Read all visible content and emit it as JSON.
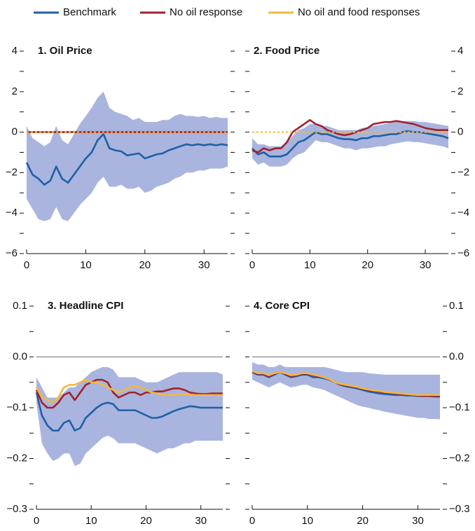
{
  "chart_data": [
    {
      "type": "line",
      "title": "1. Oil Price",
      "yaxis_side": "left",
      "x": [
        0,
        1,
        2,
        3,
        4,
        5,
        6,
        7,
        8,
        9,
        10,
        11,
        12,
        13,
        14,
        15,
        16,
        17,
        18,
        19,
        20,
        21,
        22,
        23,
        24,
        25,
        26,
        27,
        28,
        29,
        30,
        31,
        32,
        33,
        34
      ],
      "xlim": [
        0,
        34
      ],
      "xticks": [
        0,
        10,
        20,
        30
      ],
      "ylim": [
        -6,
        4
      ],
      "yticks": [
        4,
        2,
        0,
        {
          "value": -2,
          "label": "−2"
        },
        {
          "value": -4,
          "label": "−4"
        },
        {
          "value": -6,
          "label": "−6"
        }
      ],
      "yminor": [
        3,
        1,
        -1,
        -3,
        -5
      ],
      "zero_line": false,
      "band": {
        "color": "#a9b5de",
        "upper": [
          0.3,
          -0.3,
          -0.5,
          -0.7,
          -0.5,
          0.3,
          -0.4,
          -0.6,
          -0.1,
          0.4,
          0.8,
          1.2,
          1.7,
          2.0,
          1.2,
          1.0,
          0.9,
          0.8,
          0.6,
          0.7,
          0.5,
          0.5,
          0.5,
          0.6,
          0.6,
          0.8,
          0.9,
          0.8,
          0.8,
          0.75,
          0.8,
          0.7,
          0.75,
          0.7,
          0.7
        ],
        "lower": [
          -3.3,
          -3.8,
          -4.3,
          -4.4,
          -4.3,
          -3.7,
          -4.3,
          -4.4,
          -4.0,
          -3.6,
          -3.3,
          -3.0,
          -2.5,
          -2.2,
          -2.7,
          -2.7,
          -2.6,
          -2.8,
          -2.8,
          -2.7,
          -3.0,
          -2.9,
          -2.7,
          -2.6,
          -2.5,
          -2.3,
          -2.2,
          -2.0,
          -2.0,
          -1.9,
          -1.9,
          -1.8,
          -1.8,
          -1.8,
          -1.7
        ]
      },
      "series": [
        {
          "name": "Benchmark",
          "color": "#1f5fa6",
          "dashed": false,
          "values": [
            -1.5,
            -2.1,
            -2.3,
            -2.6,
            -2.4,
            -1.7,
            -2.3,
            -2.5,
            -2.1,
            -1.7,
            -1.3,
            -1.0,
            -0.4,
            -0.1,
            -0.8,
            -0.9,
            -0.95,
            -1.15,
            -1.1,
            -1.05,
            -1.3,
            -1.2,
            -1.1,
            -1.05,
            -0.9,
            -0.8,
            -0.7,
            -0.6,
            -0.65,
            -0.6,
            -0.65,
            -0.6,
            -0.65,
            -0.6,
            -0.65
          ]
        },
        {
          "name": "No oil response",
          "color": "#a3202e",
          "dashed": false,
          "values": [
            0,
            0,
            0,
            0,
            0,
            0,
            0,
            0,
            0,
            0,
            0,
            0,
            0,
            0,
            0,
            0,
            0,
            0,
            0,
            0,
            0,
            0,
            0,
            0,
            0,
            0,
            0,
            0,
            0,
            0,
            0,
            0,
            0,
            0,
            0
          ]
        },
        {
          "name": "No oil and food responses",
          "color": "#f4b73f",
          "dashed": true,
          "values": [
            0,
            0,
            0,
            0,
            0,
            0,
            0,
            0,
            0,
            0,
            0,
            0,
            0,
            0,
            0,
            0,
            0,
            0,
            0,
            0,
            0,
            0,
            0,
            0,
            0,
            0,
            0,
            0,
            0,
            0,
            0,
            0,
            0,
            0,
            0
          ]
        }
      ]
    },
    {
      "type": "line",
      "title": "2. Food Price",
      "yaxis_side": "right",
      "x": [
        0,
        1,
        2,
        3,
        4,
        5,
        6,
        7,
        8,
        9,
        10,
        11,
        12,
        13,
        14,
        15,
        16,
        17,
        18,
        19,
        20,
        21,
        22,
        23,
        24,
        25,
        26,
        27,
        28,
        29,
        30,
        31,
        32,
        33,
        34
      ],
      "xlim": [
        0,
        34
      ],
      "xticks": [
        0,
        10,
        20,
        30
      ],
      "ylim": [
        -6,
        4
      ],
      "yticks": [
        4,
        2,
        0,
        {
          "value": -2,
          "label": "−2"
        },
        {
          "value": -4,
          "label": "−4"
        },
        {
          "value": -6,
          "label": "−6"
        }
      ],
      "yminor": [
        3,
        1,
        -1,
        -3,
        -5
      ],
      "zero_line": false,
      "band": {
        "color": "#a9b5de",
        "upper": [
          -0.3,
          -0.6,
          -0.6,
          -0.7,
          -0.7,
          -0.7,
          -0.5,
          -0.2,
          0.1,
          0.2,
          0.4,
          0.4,
          0.3,
          0.3,
          0.2,
          0.1,
          0.1,
          0.1,
          0.1,
          0.2,
          0.25,
          0.3,
          0.35,
          0.4,
          0.45,
          0.5,
          0.55,
          0.55,
          0.55,
          0.5,
          0.5,
          0.45,
          0.4,
          0.35,
          0.3
        ],
        "lower": [
          -1.3,
          -1.6,
          -1.5,
          -1.7,
          -1.7,
          -1.7,
          -1.6,
          -1.3,
          -1.1,
          -1.0,
          -0.7,
          -0.4,
          -0.5,
          -0.5,
          -0.6,
          -0.7,
          -0.8,
          -0.8,
          -0.9,
          -0.8,
          -0.8,
          -0.75,
          -0.7,
          -0.7,
          -0.6,
          -0.55,
          -0.5,
          -0.45,
          -0.5,
          -0.5,
          -0.55,
          -0.6,
          -0.65,
          -0.7,
          -0.8
        ]
      },
      "series": [
        {
          "name": "Benchmark",
          "color": "#1f5fa6",
          "dashed": false,
          "values": [
            -0.8,
            -1.1,
            -1.0,
            -1.2,
            -1.2,
            -1.2,
            -1.1,
            -0.8,
            -0.5,
            -0.4,
            -0.2,
            0.0,
            -0.1,
            -0.1,
            -0.2,
            -0.3,
            -0.35,
            -0.35,
            -0.4,
            -0.3,
            -0.3,
            -0.2,
            -0.2,
            -0.15,
            -0.1,
            -0.1,
            0.0,
            0.05,
            0.0,
            0.0,
            -0.05,
            -0.1,
            -0.15,
            -0.2,
            -0.3
          ]
        },
        {
          "name": "No oil response",
          "color": "#a3202e",
          "dashed": false,
          "values": [
            -0.9,
            -1.0,
            -0.8,
            -0.9,
            -0.8,
            -0.8,
            -0.5,
            0.0,
            0.2,
            0.4,
            0.6,
            0.4,
            0.3,
            0.1,
            0.0,
            -0.1,
            -0.15,
            -0.1,
            0.0,
            0.1,
            0.2,
            0.4,
            0.45,
            0.5,
            0.5,
            0.55,
            0.5,
            0.45,
            0.4,
            0.3,
            0.2,
            0.15,
            0.1,
            0.1,
            0.1
          ]
        },
        {
          "name": "No oil and food responses",
          "color": "#f4b73f",
          "dashed": true,
          "values": [
            0,
            0,
            0,
            0,
            0,
            0,
            0,
            0,
            0,
            0,
            0,
            0,
            0,
            0,
            0,
            0,
            0,
            0,
            0,
            0,
            0,
            0,
            0,
            0,
            0,
            0,
            0,
            0,
            0,
            0,
            0,
            0,
            0,
            0,
            0
          ]
        }
      ]
    },
    {
      "type": "line",
      "title": "3. Headline CPI",
      "yaxis_side": "left",
      "x": [
        0,
        1,
        2,
        3,
        4,
        5,
        6,
        7,
        8,
        9,
        10,
        11,
        12,
        13,
        14,
        15,
        16,
        17,
        18,
        19,
        20,
        21,
        22,
        23,
        24,
        25,
        26,
        27,
        28,
        29,
        30,
        31,
        32,
        33,
        34
      ],
      "xlim": [
        0,
        34
      ],
      "xticks": [
        0,
        10,
        20,
        30
      ],
      "ylim": [
        -0.3,
        0.1
      ],
      "yticks": [
        0.1,
        {
          "value": 0,
          "label": "0.0"
        },
        {
          "value": -0.1,
          "label": "−0.1"
        },
        {
          "value": -0.2,
          "label": "−0.2"
        },
        {
          "value": -0.3,
          "label": "−0.3"
        }
      ],
      "yminor": [
        0.05,
        -0.05,
        -0.15,
        -0.25
      ],
      "zero_line": true,
      "band": {
        "color": "#a9b5de",
        "upper": [
          -0.04,
          -0.06,
          -0.08,
          -0.08,
          -0.08,
          -0.07,
          -0.06,
          -0.06,
          -0.05,
          -0.04,
          -0.03,
          -0.025,
          -0.02,
          -0.02,
          -0.025,
          -0.04,
          -0.04,
          -0.04,
          -0.04,
          -0.045,
          -0.05,
          -0.05,
          -0.05,
          -0.045,
          -0.04,
          -0.035,
          -0.03,
          -0.03,
          -0.03,
          -0.03,
          -0.03,
          -0.03,
          -0.03,
          -0.03,
          -0.035
        ],
        "lower": [
          -0.09,
          -0.17,
          -0.19,
          -0.205,
          -0.2,
          -0.19,
          -0.19,
          -0.215,
          -0.21,
          -0.19,
          -0.18,
          -0.17,
          -0.16,
          -0.155,
          -0.16,
          -0.17,
          -0.17,
          -0.17,
          -0.17,
          -0.175,
          -0.18,
          -0.185,
          -0.19,
          -0.185,
          -0.18,
          -0.18,
          -0.175,
          -0.17,
          -0.17,
          -0.165,
          -0.165,
          -0.165,
          -0.165,
          -0.165,
          -0.165
        ]
      },
      "series": [
        {
          "name": "Benchmark",
          "color": "#1f5fa6",
          "dashed": false,
          "values": [
            -0.07,
            -0.115,
            -0.135,
            -0.145,
            -0.145,
            -0.13,
            -0.125,
            -0.145,
            -0.14,
            -0.12,
            -0.11,
            -0.1,
            -0.093,
            -0.09,
            -0.093,
            -0.105,
            -0.105,
            -0.105,
            -0.105,
            -0.11,
            -0.115,
            -0.12,
            -0.12,
            -0.117,
            -0.112,
            -0.107,
            -0.103,
            -0.1,
            -0.097,
            -0.098,
            -0.1,
            -0.1,
            -0.1,
            -0.1,
            -0.1
          ]
        },
        {
          "name": "No oil response",
          "color": "#a3202e",
          "dashed": false,
          "values": [
            -0.065,
            -0.09,
            -0.1,
            -0.1,
            -0.09,
            -0.075,
            -0.07,
            -0.085,
            -0.07,
            -0.055,
            -0.05,
            -0.045,
            -0.045,
            -0.05,
            -0.07,
            -0.08,
            -0.075,
            -0.07,
            -0.07,
            -0.075,
            -0.07,
            -0.07,
            -0.068,
            -0.068,
            -0.065,
            -0.062,
            -0.062,
            -0.065,
            -0.07,
            -0.072,
            -0.073,
            -0.073,
            -0.072,
            -0.072,
            -0.072
          ]
        },
        {
          "name": "No oil and food responses",
          "color": "#f4b73f",
          "dashed": false,
          "values": [
            -0.06,
            -0.08,
            -0.085,
            -0.09,
            -0.08,
            -0.06,
            -0.055,
            -0.055,
            -0.05,
            -0.045,
            -0.05,
            -0.05,
            -0.055,
            -0.06,
            -0.065,
            -0.07,
            -0.065,
            -0.06,
            -0.058,
            -0.06,
            -0.065,
            -0.07,
            -0.072,
            -0.075,
            -0.075,
            -0.075,
            -0.073,
            -0.073,
            -0.074,
            -0.075,
            -0.075,
            -0.075,
            -0.075,
            -0.075,
            -0.075
          ]
        }
      ]
    },
    {
      "type": "line",
      "title": "4. Core CPI",
      "yaxis_side": "right",
      "x": [
        0,
        1,
        2,
        3,
        4,
        5,
        6,
        7,
        8,
        9,
        10,
        11,
        12,
        13,
        14,
        15,
        16,
        17,
        18,
        19,
        20,
        21,
        22,
        23,
        24,
        25,
        26,
        27,
        28,
        29,
        30,
        31,
        32,
        33,
        34
      ],
      "xlim": [
        0,
        34
      ],
      "xticks": [
        0,
        10,
        20,
        30
      ],
      "ylim": [
        -0.3,
        0.1
      ],
      "yticks": [
        0.1,
        {
          "value": 0,
          "label": "0.0"
        },
        {
          "value": -0.1,
          "label": "−0.1"
        },
        {
          "value": -0.2,
          "label": "−0.2"
        },
        {
          "value": -0.3,
          "label": "−0.3"
        }
      ],
      "yminor": [
        0.05,
        -0.05,
        -0.15,
        -0.25
      ],
      "zero_line": true,
      "band": {
        "color": "#a9b5de",
        "upper": [
          -0.01,
          -0.015,
          -0.015,
          -0.02,
          -0.02,
          -0.015,
          -0.02,
          -0.02,
          -0.02,
          -0.02,
          -0.02,
          -0.02,
          -0.02,
          -0.02,
          -0.022,
          -0.025,
          -0.028,
          -0.03,
          -0.03,
          -0.03,
          -0.03,
          -0.032,
          -0.033,
          -0.034,
          -0.035,
          -0.035,
          -0.035,
          -0.035,
          -0.035,
          -0.035,
          -0.035,
          -0.035,
          -0.035,
          -0.035,
          -0.035
        ],
        "lower": [
          -0.045,
          -0.05,
          -0.055,
          -0.06,
          -0.055,
          -0.05,
          -0.055,
          -0.06,
          -0.058,
          -0.055,
          -0.055,
          -0.06,
          -0.062,
          -0.065,
          -0.07,
          -0.075,
          -0.08,
          -0.085,
          -0.09,
          -0.095,
          -0.098,
          -0.1,
          -0.103,
          -0.105,
          -0.108,
          -0.11,
          -0.112,
          -0.114,
          -0.116,
          -0.118,
          -0.12,
          -0.12,
          -0.122,
          -0.122,
          -0.123
        ]
      },
      "series": [
        {
          "name": "Benchmark",
          "color": "#1f5fa6",
          "dashed": false,
          "values": [
            -0.03,
            -0.035,
            -0.035,
            -0.04,
            -0.035,
            -0.03,
            -0.035,
            -0.04,
            -0.038,
            -0.035,
            -0.035,
            -0.04,
            -0.04,
            -0.042,
            -0.045,
            -0.05,
            -0.055,
            -0.058,
            -0.06,
            -0.062,
            -0.065,
            -0.068,
            -0.07,
            -0.072,
            -0.073,
            -0.074,
            -0.075,
            -0.075,
            -0.076,
            -0.076,
            -0.077,
            -0.077,
            -0.077,
            -0.078,
            -0.078
          ]
        },
        {
          "name": "No oil response",
          "color": "#a3202e",
          "dashed": false,
          "values": [
            -0.03,
            -0.033,
            -0.033,
            -0.038,
            -0.033,
            -0.03,
            -0.033,
            -0.038,
            -0.036,
            -0.033,
            -0.033,
            -0.036,
            -0.038,
            -0.04,
            -0.045,
            -0.05,
            -0.055,
            -0.056,
            -0.058,
            -0.06,
            -0.063,
            -0.065,
            -0.067,
            -0.068,
            -0.07,
            -0.071,
            -0.072,
            -0.073,
            -0.074,
            -0.075,
            -0.076,
            -0.077,
            -0.077,
            -0.077,
            -0.077
          ]
        },
        {
          "name": "No oil and food responses",
          "color": "#f4b73f",
          "dashed": false,
          "values": [
            -0.028,
            -0.032,
            -0.032,
            -0.036,
            -0.032,
            -0.03,
            -0.032,
            -0.036,
            -0.035,
            -0.032,
            -0.032,
            -0.035,
            -0.037,
            -0.04,
            -0.044,
            -0.05,
            -0.053,
            -0.055,
            -0.057,
            -0.059,
            -0.062,
            -0.064,
            -0.066,
            -0.067,
            -0.069,
            -0.07,
            -0.071,
            -0.072,
            -0.073,
            -0.074,
            -0.075,
            -0.075,
            -0.075,
            -0.075,
            -0.075
          ]
        }
      ]
    }
  ]
}
